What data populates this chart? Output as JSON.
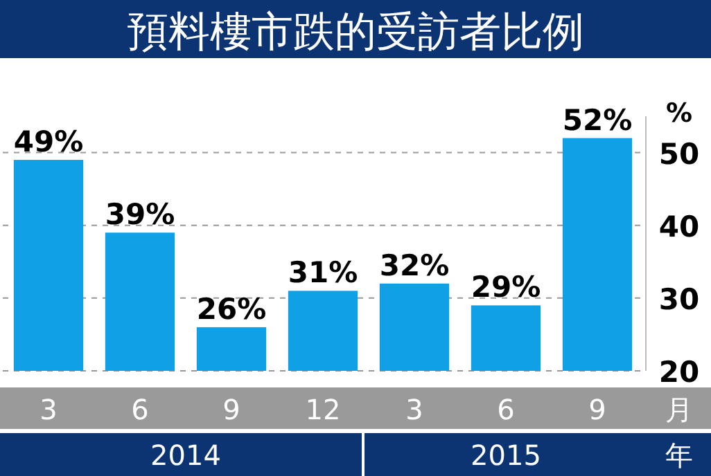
{
  "chart_data": {
    "type": "bar",
    "title": "預料樓市跌的受訪者比例",
    "categories": [
      "3",
      "6",
      "9",
      "12",
      "3",
      "6",
      "9"
    ],
    "values": [
      49,
      39,
      26,
      31,
      32,
      29,
      52
    ],
    "value_labels": [
      "49%",
      "39%",
      "26%",
      "31%",
      "32%",
      "29%",
      "52%"
    ],
    "color": "#0fa0e6",
    "xlabel": "月",
    "ylabel": "%",
    "annotations": [
      "2014",
      "2015",
      "年"
    ],
    "ylim": [
      20,
      55
    ],
    "yticks": [
      20,
      30,
      40,
      50
    ],
    "grid": "y"
  }
}
